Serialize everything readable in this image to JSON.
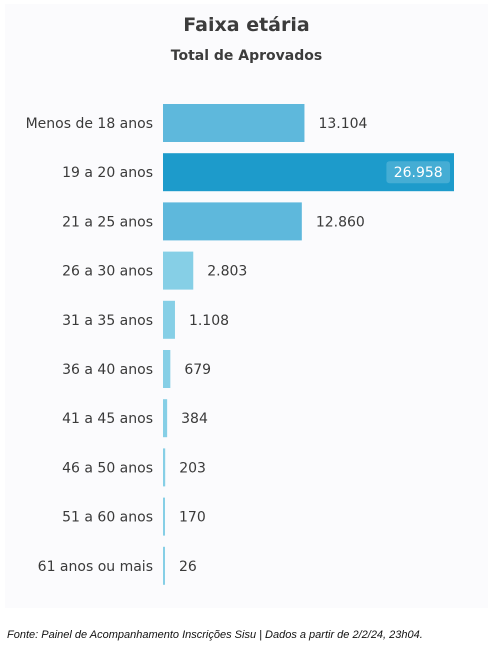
{
  "chart_data": {
    "type": "bar",
    "orientation": "horizontal",
    "title": "Faixa etária",
    "subtitle": "Total de Aprovados",
    "categories": [
      "Menos de 18 anos",
      "19 a 20 anos",
      "21 a 25 anos",
      "26 a 30 anos",
      "31 a 35 anos",
      "36 a 40 anos",
      "41 a 45 anos",
      "46 a 50 anos",
      "51 a 60 anos",
      "61 anos ou mais"
    ],
    "values": [
      13104,
      26958,
      12860,
      2803,
      1108,
      679,
      384,
      203,
      170,
      26
    ],
    "value_labels": [
      "13.104",
      "26.958",
      "12.860",
      "2.803",
      "1.108",
      "679",
      "384",
      "203",
      "170",
      "26"
    ],
    "xlim": [
      0,
      26958
    ],
    "grid": false,
    "colors": {
      "highlight": "#1d9bcb",
      "large": "#5eb8dc",
      "medium": "#53b4dc",
      "small": "#86cfe6"
    }
  },
  "source_note": "Fonte: Painel de Acompanhamento Inscrições Sisu | Dados a partir de 2/2/24, 23h04."
}
